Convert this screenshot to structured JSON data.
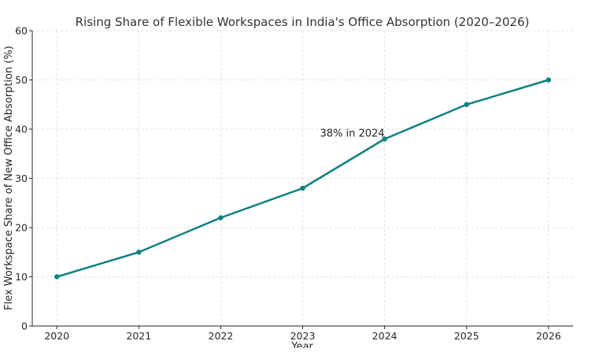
{
  "chart_data": {
    "type": "line",
    "title": "Rising Share of Flexible Workspaces in India's Office Absorption (2020–2026)",
    "xlabel": "Year",
    "ylabel": "Flex Workspace Share of New Office Absorption (%)",
    "x": [
      2020,
      2021,
      2022,
      2023,
      2024,
      2025,
      2026
    ],
    "x_tick_labels": [
      "2020",
      "2021",
      "2022",
      "2023",
      "2024",
      "2025",
      "2026"
    ],
    "series": [
      {
        "values": [
          10,
          15,
          22,
          28,
          38,
          45,
          50
        ],
        "color": "#0f8080"
      }
    ],
    "xlim": [
      2019.7,
      2026.3
    ],
    "ylim": [
      0,
      60
    ],
    "y_ticks": [
      0,
      10,
      20,
      30,
      40,
      50,
      60
    ],
    "y_tick_labels": [
      "0",
      "10",
      "20",
      "30",
      "40",
      "50",
      "60"
    ],
    "grid": true,
    "legend": "none",
    "annotations": [
      {
        "text": "38% in 2024",
        "x": 2024,
        "y": 38
      }
    ]
  }
}
